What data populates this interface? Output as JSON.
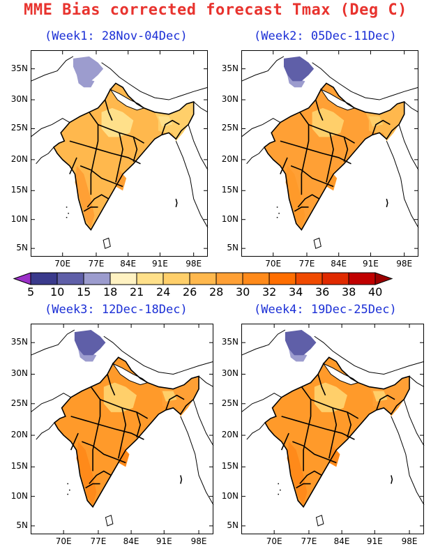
{
  "title": "MME Bias corrected forecast Tmax (Deg C)",
  "panels": [
    {
      "label": "(Week1: 28Nov-04Dec)",
      "shift": 0
    },
    {
      "label": "(Week2: 05Dec-11Dec)",
      "shift": 1
    },
    {
      "label": "(Week3: 12Dec-18Dec)",
      "shift": 2
    },
    {
      "label": "(Week4: 19Dec-25Dec)",
      "shift": 2
    }
  ],
  "lat_labels": [
    "35N",
    "30N",
    "25N",
    "20N",
    "15N",
    "10N",
    "5N"
  ],
  "lon_labels": [
    "70E",
    "77E",
    "84E",
    "91E",
    "98E"
  ],
  "colorbar": {
    "labels": [
      "5",
      "10",
      "15",
      "18",
      "21",
      "24",
      "26",
      "28",
      "30",
      "32",
      "34",
      "36",
      "38",
      "40"
    ],
    "colors": [
      "#9b30c8",
      "#3a3a8c",
      "#5f5fa8",
      "#9c9cce",
      "#fff2c2",
      "#ffe08a",
      "#ffcf6a",
      "#ffb84d",
      "#ffa035",
      "#ff8a1a",
      "#ff6e00",
      "#f04a00",
      "#e02a00",
      "#c00000",
      "#9b0000"
    ]
  }
}
